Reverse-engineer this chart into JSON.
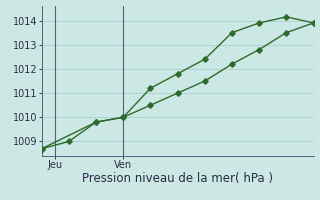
{
  "line1_x": [
    0,
    1,
    2,
    3,
    4,
    5,
    6,
    7,
    8,
    9,
    10
  ],
  "line1_y": [
    1008.7,
    1009.0,
    1009.8,
    1010.0,
    1011.2,
    1011.8,
    1012.4,
    1013.5,
    1013.9,
    1014.15,
    1013.9
  ],
  "line2_x": [
    0,
    2,
    3,
    4,
    5,
    6,
    7,
    8,
    9,
    10
  ],
  "line2_y": [
    1008.7,
    1009.8,
    1010.0,
    1010.5,
    1011.0,
    1011.5,
    1012.2,
    1012.8,
    1013.5,
    1013.9
  ],
  "jeu_x": 0.5,
  "ven_x": 3.0,
  "tick_label_jeu": "Jeu",
  "tick_label_ven": "Ven",
  "xlabel": "Pression niveau de la mer( hPa )",
  "ylim": [
    1008.4,
    1014.6
  ],
  "xlim": [
    0,
    10
  ],
  "yticks": [
    1009,
    1010,
    1011,
    1012,
    1013,
    1014
  ],
  "line_color": "#2d6a2d",
  "bg_color": "#cce8e4",
  "grid_color": "#aacfcb",
  "vline_color": "#5a5a7a",
  "marker": "D",
  "marker_size": 2.8,
  "linewidth": 1.0,
  "xlabel_fontsize": 8.5,
  "tick_fontsize": 7
}
